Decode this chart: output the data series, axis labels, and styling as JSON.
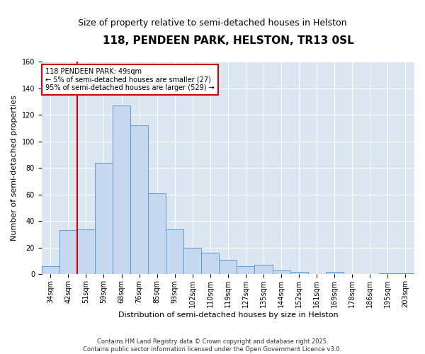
{
  "title": "118, PENDEEN PARK, HELSTON, TR13 0SL",
  "subtitle": "Size of property relative to semi-detached houses in Helston",
  "xlabel": "Distribution of semi-detached houses by size in Helston",
  "ylabel": "Number of semi-detached properties",
  "categories": [
    "34sqm",
    "42sqm",
    "51sqm",
    "59sqm",
    "68sqm",
    "76sqm",
    "85sqm",
    "93sqm",
    "102sqm",
    "110sqm",
    "119sqm",
    "127sqm",
    "135sqm",
    "144sqm",
    "152sqm",
    "161sqm",
    "169sqm",
    "178sqm",
    "186sqm",
    "195sqm",
    "203sqm"
  ],
  "values": [
    6,
    33,
    34,
    84,
    127,
    112,
    61,
    34,
    20,
    16,
    11,
    6,
    7,
    3,
    2,
    0,
    2,
    0,
    0,
    1,
    1
  ],
  "bar_color": "#c5d8f0",
  "bar_edge_color": "#5b9bd5",
  "plot_bg_color": "#dce6f1",
  "fig_bg_color": "#ffffff",
  "vline_color": "#cc0000",
  "vline_x_index": 2,
  "annotation_text": "118 PENDEEN PARK: 49sqm\n← 5% of semi-detached houses are smaller (27)\n95% of semi-detached houses are larger (529) →",
  "annotation_box_color": "#cc0000",
  "ylim": [
    0,
    160
  ],
  "yticks": [
    0,
    20,
    40,
    60,
    80,
    100,
    120,
    140,
    160
  ],
  "title_fontsize": 11,
  "subtitle_fontsize": 9,
  "xlabel_fontsize": 8,
  "ylabel_fontsize": 8,
  "tick_fontsize": 7,
  "annot_fontsize": 7,
  "footer_fontsize": 6,
  "footer1": "Contains HM Land Registry data © Crown copyright and database right 2025.",
  "footer2": "Contains public sector information licensed under the Open Government Licence v3.0."
}
